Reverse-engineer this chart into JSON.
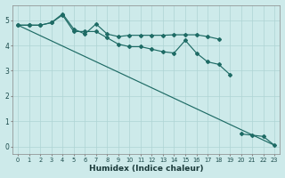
{
  "xlabel": "Humidex (Indice chaleur)",
  "background_color": "#cdeaea",
  "grid_color": "#aed4d4",
  "line_color": "#1e6b65",
  "xlim": [
    -0.5,
    23.5
  ],
  "ylim": [
    -0.3,
    5.6
  ],
  "xticks": [
    0,
    1,
    2,
    3,
    4,
    5,
    6,
    7,
    8,
    9,
    10,
    11,
    12,
    13,
    14,
    15,
    16,
    17,
    18,
    19,
    20,
    21,
    22,
    23
  ],
  "yticks": [
    0,
    1,
    2,
    3,
    4,
    5
  ],
  "line1_x": [
    0,
    1,
    2,
    3,
    4,
    5,
    6,
    7,
    8,
    9,
    10,
    11,
    12,
    13,
    14,
    15,
    16,
    17,
    18,
    19
  ],
  "line1_y": [
    4.8,
    4.8,
    4.8,
    4.9,
    5.2,
    4.55,
    4.55,
    4.55,
    4.3,
    4.05,
    3.95,
    3.95,
    3.85,
    3.75,
    3.7,
    4.2,
    3.7,
    3.35,
    3.25,
    2.85
  ],
  "line2_x": [
    0,
    1,
    2,
    3,
    4,
    5,
    6,
    7,
    8,
    9,
    10,
    11,
    12,
    13,
    14,
    15,
    16,
    17,
    18,
    20,
    21,
    22,
    23
  ],
  "line2_y": [
    4.8,
    4.8,
    4.8,
    4.9,
    5.25,
    4.65,
    4.45,
    4.85,
    4.45,
    4.35,
    4.4,
    4.4,
    4.4,
    4.4,
    4.42,
    4.42,
    4.42,
    4.35,
    4.25,
    0.5,
    0.45,
    0.4,
    0.05
  ],
  "line3_x": [
    0,
    23
  ],
  "line3_y": [
    4.8,
    0.05
  ]
}
